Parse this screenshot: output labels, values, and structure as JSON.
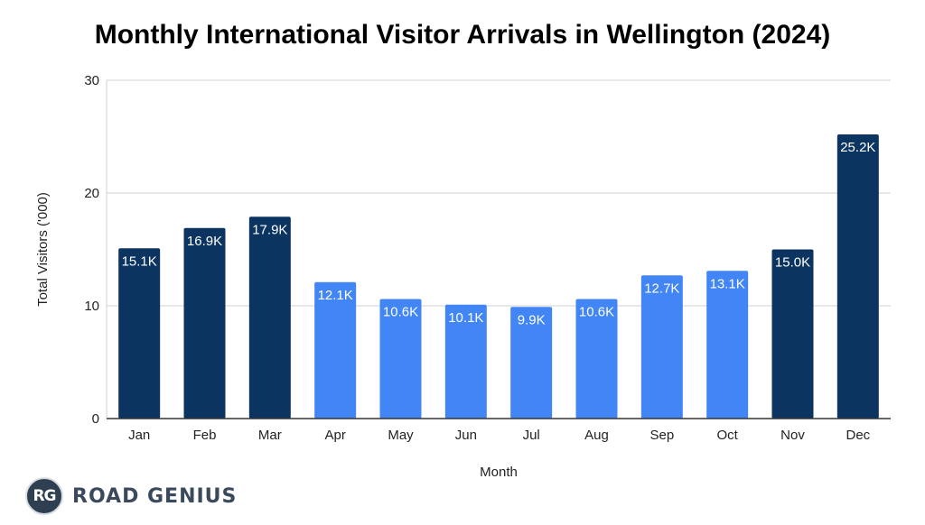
{
  "chart_data": {
    "type": "bar",
    "title": "Monthly International Visitor Arrivals in Wellington (2024)",
    "xlabel": "Month",
    "ylabel": "Total Visitors ('000)",
    "ylim": [
      0,
      30
    ],
    "yticks": [
      "0",
      "10",
      "20",
      "30"
    ],
    "grid": true,
    "categories": [
      "Jan",
      "Feb",
      "Mar",
      "Apr",
      "May",
      "Jun",
      "Jul",
      "Aug",
      "Sep",
      "Oct",
      "Nov",
      "Dec"
    ],
    "values": [
      15.1,
      16.9,
      17.9,
      12.1,
      10.6,
      10.1,
      9.9,
      10.6,
      12.7,
      13.1,
      15.0,
      25.2
    ],
    "data_labels": [
      "15.1K",
      "16.9K",
      "17.9K",
      "12.1K",
      "10.6K",
      "10.1K",
      "9.9K",
      "10.6K",
      "12.7K",
      "13.1K",
      "15.0K",
      "25.2K"
    ],
    "bar_colors": [
      "#0b3560",
      "#0b3560",
      "#0b3560",
      "#4285f4",
      "#4285f4",
      "#4285f4",
      "#4285f4",
      "#4285f4",
      "#4285f4",
      "#4285f4",
      "#0b3560",
      "#0b3560"
    ],
    "colors": {
      "dark": "#0b3560",
      "light": "#4285f4"
    }
  },
  "brand": {
    "badge_text": "RG",
    "name": "ROAD GENIUS"
  }
}
